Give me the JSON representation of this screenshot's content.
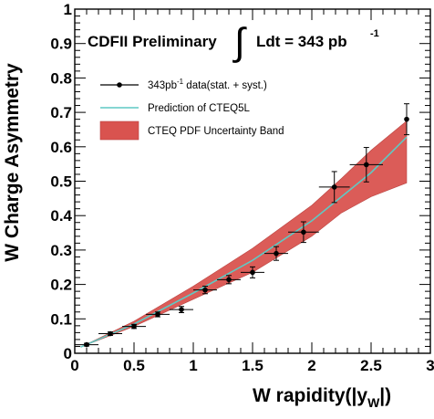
{
  "chart_data": {
    "type": "scatter",
    "annotation": {
      "prefix": "CDFII Preliminary",
      "integral": "Ldt = 343 pb",
      "superscript": "-1"
    },
    "ylabel": "W Charge Asymmetry",
    "xlabel": {
      "main": "W rapidity(|y",
      "subscript": "W",
      "suffix": "|)"
    },
    "xlim": [
      0,
      3
    ],
    "ylim": [
      0,
      1
    ],
    "x_ticks": [
      {
        "value": 0,
        "label": "0"
      },
      {
        "value": 0.5,
        "label": "0.5"
      },
      {
        "value": 1,
        "label": "1"
      },
      {
        "value": 1.5,
        "label": "1.5"
      },
      {
        "value": 2,
        "label": "2"
      },
      {
        "value": 2.5,
        "label": "2.5"
      },
      {
        "value": 3,
        "label": "3"
      }
    ],
    "y_ticks": [
      {
        "value": 0,
        "label": "0"
      },
      {
        "value": 0.1,
        "label": "0.1"
      },
      {
        "value": 0.2,
        "label": "0.2"
      },
      {
        "value": 0.3,
        "label": "0.3"
      },
      {
        "value": 0.4,
        "label": "0.4"
      },
      {
        "value": 0.5,
        "label": "0.5"
      },
      {
        "value": 0.6,
        "label": "0.6"
      },
      {
        "value": 0.7,
        "label": "0.7"
      },
      {
        "value": 0.8,
        "label": "0.8"
      },
      {
        "value": 0.9,
        "label": "0.9"
      },
      {
        "value": 1,
        "label": "1"
      }
    ],
    "legend": {
      "placement": "upper-left",
      "entries": [
        {
          "kind": "data",
          "prefix": "343pb",
          "superscript": "-1",
          "suffix": " data(stat. + syst.)"
        },
        {
          "kind": "line",
          "label": "Prediction of CTEQ5L"
        },
        {
          "kind": "band",
          "label": "CTEQ PDF Uncertainty Band"
        }
      ]
    },
    "series": [
      {
        "kind": "data",
        "color": "#000000",
        "points": [
          {
            "x": 0.1,
            "y": 0.025,
            "xerr": 0.1,
            "yerr": 0.004
          },
          {
            "x": 0.3,
            "y": 0.057,
            "xerr": 0.1,
            "yerr": 0.005
          },
          {
            "x": 0.5,
            "y": 0.078,
            "xerr": 0.1,
            "yerr": 0.006
          },
          {
            "x": 0.7,
            "y": 0.113,
            "xerr": 0.1,
            "yerr": 0.007
          },
          {
            "x": 0.9,
            "y": 0.127,
            "xerr": 0.1,
            "yerr": 0.009
          },
          {
            "x": 1.1,
            "y": 0.184,
            "xerr": 0.1,
            "yerr": 0.011
          },
          {
            "x": 1.3,
            "y": 0.214,
            "xerr": 0.1,
            "yerr": 0.012
          },
          {
            "x": 1.5,
            "y": 0.235,
            "xerr": 0.1,
            "yerr": 0.016
          },
          {
            "x": 1.7,
            "y": 0.29,
            "xerr": 0.1,
            "yerr": 0.02
          },
          {
            "x": 1.93,
            "y": 0.352,
            "xerr": 0.13,
            "yerr": 0.03
          },
          {
            "x": 2.19,
            "y": 0.483,
            "xerr": 0.13,
            "yerr": 0.045
          },
          {
            "x": 2.46,
            "y": 0.548,
            "xerr": 0.14,
            "yerr": 0.05
          },
          {
            "x": 2.8,
            "y": 0.68,
            "xerr": 0.0,
            "yerr": 0.045
          }
        ]
      },
      {
        "kind": "line",
        "color": "#5fc9c3",
        "x": [
          0.05,
          0.5,
          1.0,
          1.5,
          2.0,
          2.5,
          2.8
        ],
        "y": [
          0.018,
          0.085,
          0.175,
          0.27,
          0.385,
          0.525,
          0.628
        ]
      },
      {
        "kind": "band",
        "color": "#d9534f",
        "x": [
          0.05,
          0.5,
          1.0,
          1.5,
          2.0,
          2.25,
          2.5,
          2.8
        ],
        "upper": [
          0.018,
          0.093,
          0.195,
          0.305,
          0.43,
          0.508,
          0.59,
          0.675
        ],
        "lower": [
          0.018,
          0.078,
          0.157,
          0.235,
          0.34,
          0.408,
          0.455,
          0.495
        ]
      }
    ]
  }
}
